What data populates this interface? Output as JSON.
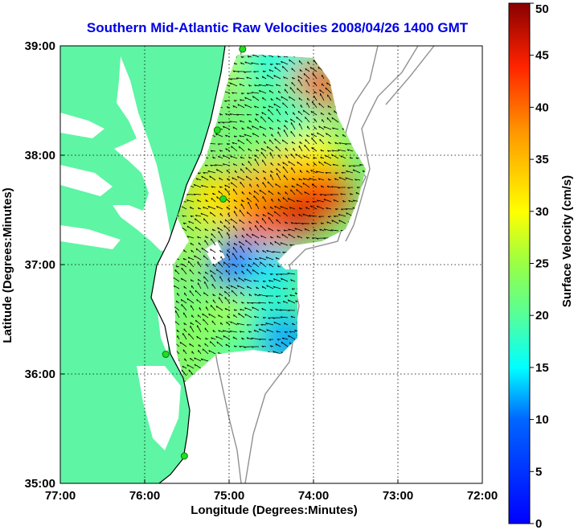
{
  "chart_data": {
    "type": "heatmap",
    "title": "Southern Mid-Atlantic Raw Velocities 2008/04/26 1400 GMT",
    "xlabel": "Longitude (Degrees:Minutes)",
    "ylabel": "Latitude (Degrees:Minutes)",
    "colorbar_label": "Surface Velocity (cm/s)",
    "x_ticks": [
      {
        "value": -77,
        "label": "77:00"
      },
      {
        "value": -76,
        "label": "76:00"
      },
      {
        "value": -75,
        "label": "75:00"
      },
      {
        "value": -74,
        "label": "74:00"
      },
      {
        "value": -73,
        "label": "73:00"
      },
      {
        "value": -72,
        "label": "72:00"
      }
    ],
    "y_ticks": [
      {
        "value": 35,
        "label": "35:00"
      },
      {
        "value": 36,
        "label": "36:00"
      },
      {
        "value": 37,
        "label": "37:00"
      },
      {
        "value": 38,
        "label": "38:00"
      },
      {
        "value": 39,
        "label": "39:00"
      }
    ],
    "xlim": [
      -77,
      -72
    ],
    "ylim": [
      35,
      39
    ],
    "colorbar_ticks": [
      0,
      5,
      10,
      15,
      20,
      25,
      30,
      35,
      40,
      45,
      50
    ],
    "colorbar_range": [
      0,
      50
    ],
    "grid": true,
    "colors": {
      "land": "#5ef5a4",
      "title": "#0000e6",
      "station": "#22dd22",
      "bathymetry": "#909090"
    },
    "velocity_field": [
      {
        "lon": -74.85,
        "lat": 38.85,
        "speed": 28
      },
      {
        "lon": -74.6,
        "lat": 38.85,
        "speed": 18
      },
      {
        "lon": -74.3,
        "lat": 38.85,
        "speed": 16
      },
      {
        "lon": -74.0,
        "lat": 38.6,
        "speed": 42
      },
      {
        "lon": -74.5,
        "lat": 38.5,
        "speed": 20
      },
      {
        "lon": -74.2,
        "lat": 38.3,
        "speed": 18
      },
      {
        "lon": -74.7,
        "lat": 38.1,
        "speed": 22
      },
      {
        "lon": -74.0,
        "lat": 38.0,
        "speed": 30
      },
      {
        "lon": -74.4,
        "lat": 37.8,
        "speed": 34
      },
      {
        "lon": -73.9,
        "lat": 37.65,
        "speed": 42
      },
      {
        "lon": -74.3,
        "lat": 37.45,
        "speed": 46
      },
      {
        "lon": -74.9,
        "lat": 37.6,
        "speed": 38
      },
      {
        "lon": -75.2,
        "lat": 37.6,
        "speed": 32
      },
      {
        "lon": -74.6,
        "lat": 37.25,
        "speed": 40
      },
      {
        "lon": -75.2,
        "lat": 37.15,
        "speed": 26
      },
      {
        "lon": -74.9,
        "lat": 37.0,
        "speed": 8
      },
      {
        "lon": -74.5,
        "lat": 36.95,
        "speed": 14
      },
      {
        "lon": -75.3,
        "lat": 36.6,
        "speed": 22
      },
      {
        "lon": -74.9,
        "lat": 36.55,
        "speed": 26
      },
      {
        "lon": -74.5,
        "lat": 36.6,
        "speed": 18
      },
      {
        "lon": -74.35,
        "lat": 36.3,
        "speed": 12
      },
      {
        "lon": -75.3,
        "lat": 36.25,
        "speed": 24
      },
      {
        "lon": -74.9,
        "lat": 36.2,
        "speed": 20
      }
    ]
  }
}
